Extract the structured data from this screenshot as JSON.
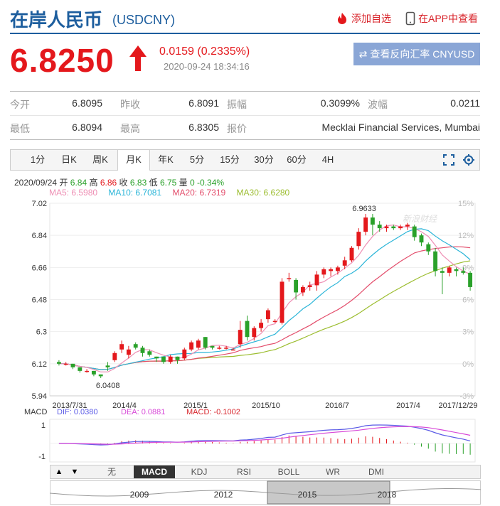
{
  "header": {
    "title": "在岸人民币",
    "code": "(USDCNY)",
    "watch_label": "添加自选",
    "app_label": "在APP中查看"
  },
  "quote": {
    "price": "6.8250",
    "change": "0.0159 (0.2335%)",
    "time": "2020-09-24 18:34:16",
    "reverse_button": "查看反向汇率 CNYUSD"
  },
  "stats": {
    "row1": [
      {
        "label": "今开",
        "value": "6.8095"
      },
      {
        "label": "昨收",
        "value": "6.8091"
      },
      {
        "label": "振幅",
        "value": "0.3099%"
      },
      {
        "label": "波幅",
        "value": "0.0211"
      }
    ],
    "row2": [
      {
        "label": "最低",
        "value": "6.8094"
      },
      {
        "label": "最高",
        "value": "6.8305"
      },
      {
        "label": "报价",
        "value": "Mecklai Financial Services, Mumbai"
      }
    ]
  },
  "tabs": [
    "1分",
    "日K",
    "周K",
    "月K",
    "年K",
    "5分",
    "15分",
    "30分",
    "60分",
    "4H"
  ],
  "active_tab": "月K",
  "ohlc_info": {
    "date": "2020/09/24",
    "open_label": "开",
    "open": "6.84",
    "high_label": "高",
    "high": "6.86",
    "close_label": "收",
    "close": "6.83",
    "low_label": "低",
    "low": "6.75",
    "vol_label": "量",
    "vol": "0",
    "pct": "-0.34%"
  },
  "ma_info": {
    "ma5": "MA5: 6.5980",
    "ma10": "MA10: 6.7081",
    "ma20": "MA20: 6.7319",
    "ma30": "MA30: 6.6280"
  },
  "macd_info": {
    "label": "MACD",
    "dif": "DIF: 0.0380",
    "dea": "DEA: 0.0881",
    "macd": "MACD: -0.1002"
  },
  "bottom_tabs": [
    "无",
    "MACD",
    "KDJ",
    "RSI",
    "BOLL",
    "WR",
    "DMI"
  ],
  "active_bottom_tab": "MACD",
  "nav_years": [
    "2009",
    "2012",
    "2015",
    "2018"
  ],
  "colors": {
    "up": "#e4181c",
    "down": "#2aa12a",
    "ma5": "#ee8fb4",
    "ma10": "#2bb5d8",
    "ma20": "#e34d6b",
    "ma30": "#9cbd2f",
    "dif": "#5a5ae6",
    "dea": "#d84ad8",
    "brand": "#1d5e9e"
  },
  "chart_data": {
    "type": "candlestick",
    "y_ticks": [
      "7.02",
      "6.84",
      "6.66",
      "6.48",
      "6.3",
      "6.12",
      "5.94"
    ],
    "y_pct_ticks": [
      "15%",
      "12%",
      "9%",
      "6%",
      "3%",
      "0%",
      "-3%"
    ],
    "x_ticks": [
      "2013/7/31",
      "2014/4",
      "2015/1",
      "2015/10",
      "2016/7",
      "2017/4",
      "2017/12/29"
    ],
    "ylim": [
      5.94,
      7.02
    ],
    "max_label": "6.9633",
    "min_label": "6.0408",
    "watermark": "新浪财经",
    "macd_ticks": [
      "1",
      "-1"
    ],
    "candles": [
      [
        6.13,
        6.14,
        6.11,
        6.12
      ],
      [
        6.12,
        6.13,
        6.11,
        6.12
      ],
      [
        6.12,
        6.12,
        6.09,
        6.1
      ],
      [
        6.1,
        6.1,
        6.07,
        6.08
      ],
      [
        6.08,
        6.09,
        6.07,
        6.08
      ],
      [
        6.08,
        6.08,
        6.05,
        6.06
      ],
      [
        6.06,
        6.06,
        6.04,
        6.05
      ],
      [
        6.11,
        6.13,
        6.08,
        6.1
      ],
      [
        6.14,
        6.19,
        6.13,
        6.18
      ],
      [
        6.2,
        6.25,
        6.18,
        6.23
      ],
      [
        6.17,
        6.22,
        6.15,
        6.2
      ],
      [
        6.23,
        6.24,
        6.2,
        6.21
      ],
      [
        6.21,
        6.22,
        6.16,
        6.18
      ],
      [
        6.19,
        6.2,
        6.16,
        6.17
      ],
      [
        6.16,
        6.16,
        6.13,
        6.15
      ],
      [
        6.16,
        6.16,
        6.12,
        6.13
      ],
      [
        6.13,
        6.17,
        6.12,
        6.16
      ],
      [
        6.16,
        6.16,
        6.12,
        6.14
      ],
      [
        6.15,
        6.21,
        6.14,
        6.2
      ],
      [
        6.2,
        6.25,
        6.19,
        6.24
      ],
      [
        6.21,
        6.26,
        6.2,
        6.25
      ],
      [
        6.27,
        6.27,
        6.2,
        6.21
      ],
      [
        6.22,
        6.22,
        6.2,
        6.21
      ],
      [
        6.21,
        6.22,
        6.2,
        6.21
      ],
      [
        6.21,
        6.22,
        6.2,
        6.21
      ],
      [
        6.2,
        6.21,
        6.2,
        6.2
      ],
      [
        6.23,
        6.36,
        6.21,
        6.31
      ],
      [
        6.36,
        6.39,
        6.25,
        6.27
      ],
      [
        6.27,
        6.33,
        6.25,
        6.32
      ],
      [
        6.32,
        6.37,
        6.3,
        6.35
      ],
      [
        6.37,
        6.43,
        6.35,
        6.42
      ],
      [
        6.36,
        6.37,
        6.35,
        6.36
      ],
      [
        6.35,
        6.6,
        6.34,
        6.58
      ],
      [
        6.6,
        6.63,
        6.58,
        6.6
      ],
      [
        6.59,
        6.6,
        6.48,
        6.52
      ],
      [
        6.52,
        6.56,
        6.5,
        6.55
      ],
      [
        6.55,
        6.58,
        6.53,
        6.56
      ],
      [
        6.56,
        6.64,
        6.53,
        6.62
      ],
      [
        6.62,
        6.66,
        6.6,
        6.65
      ],
      [
        6.64,
        6.66,
        6.61,
        6.65
      ],
      [
        6.64,
        6.67,
        6.62,
        6.66
      ],
      [
        6.67,
        6.72,
        6.65,
        6.7
      ],
      [
        6.7,
        6.78,
        6.69,
        6.77
      ],
      [
        6.78,
        6.88,
        6.76,
        6.86
      ],
      [
        6.86,
        6.96,
        6.84,
        6.94
      ],
      [
        6.94,
        6.96,
        6.84,
        6.9
      ],
      [
        6.9,
        6.92,
        6.86,
        6.88
      ],
      [
        6.88,
        6.9,
        6.86,
        6.89
      ],
      [
        6.89,
        6.9,
        6.87,
        6.88
      ],
      [
        6.88,
        6.9,
        6.87,
        6.89
      ],
      [
        6.89,
        6.91,
        6.87,
        6.9
      ],
      [
        6.89,
        6.9,
        6.81,
        6.83
      ],
      [
        6.84,
        6.85,
        6.78,
        6.8
      ],
      [
        6.79,
        6.8,
        6.73,
        6.75
      ],
      [
        6.75,
        6.77,
        6.61,
        6.64
      ],
      [
        6.64,
        6.66,
        6.51,
        6.63
      ],
      [
        6.63,
        6.67,
        6.61,
        6.66
      ],
      [
        6.65,
        6.66,
        6.61,
        6.64
      ],
      [
        6.64,
        6.66,
        6.62,
        6.63
      ],
      [
        6.63,
        6.64,
        6.53,
        6.55
      ]
    ]
  }
}
